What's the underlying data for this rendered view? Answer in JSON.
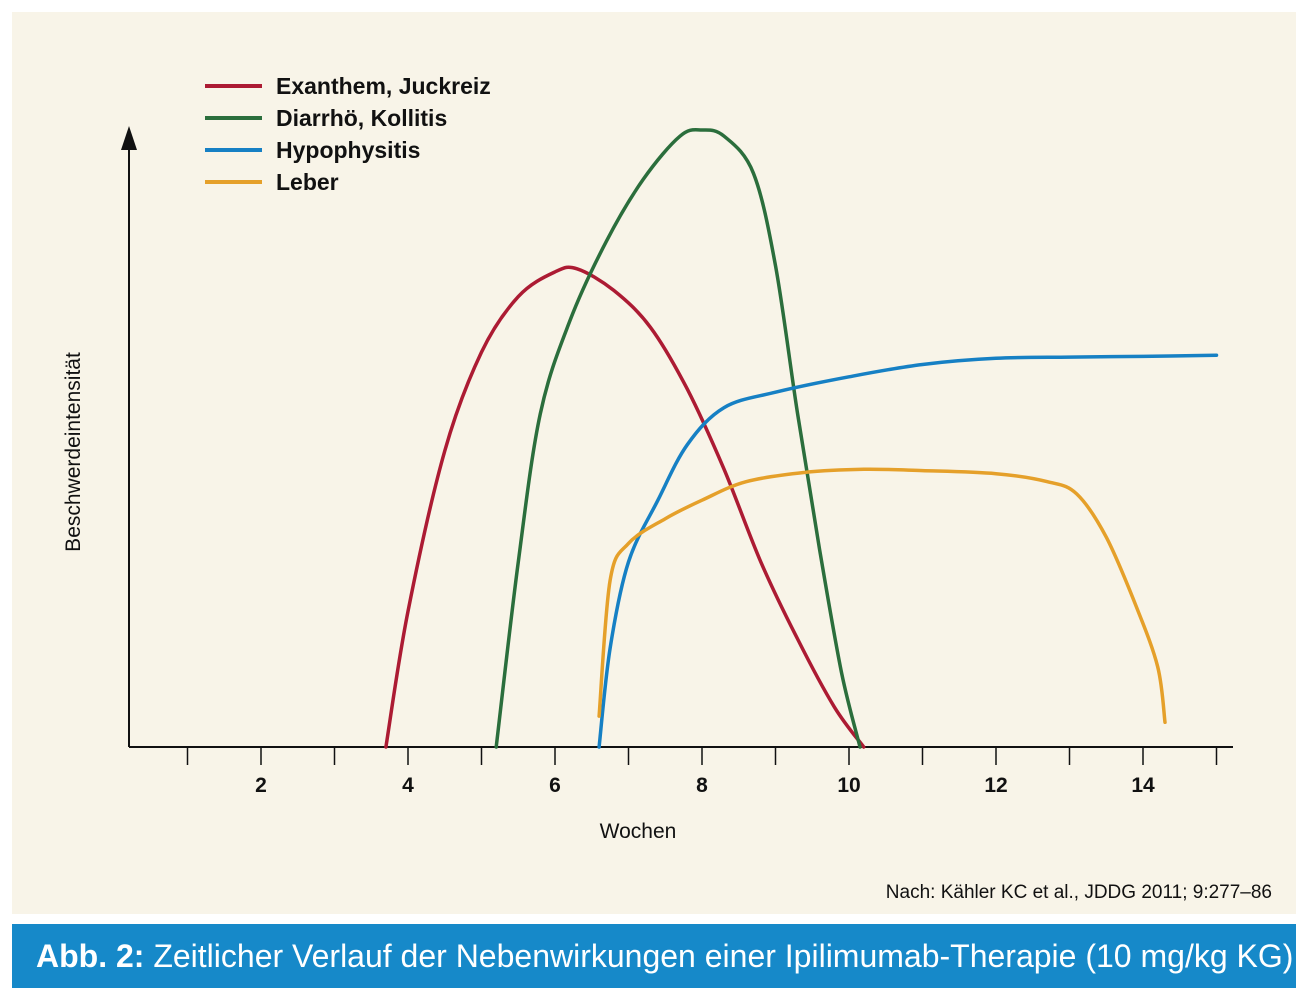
{
  "colors": {
    "panel_background": "#f8f4e8",
    "caption_bar": "#1689c9",
    "axis": "#111111"
  },
  "caption": {
    "label": "Abb. 2:",
    "text": "Zeitlicher Verlauf der Nebenwirkungen einer Ipilimumab-Therapie (10 mg/kg KG)"
  },
  "source": "Nach: Kähler KC et al., JDDG 2011; 9:277–86",
  "chart_data": {
    "type": "line",
    "title": "",
    "xlabel": "Wochen",
    "ylabel": "Beschwerdeintensität",
    "xlim": [
      0.2,
      15.2
    ],
    "ylim": [
      0,
      10
    ],
    "x_ticks": [
      1,
      2,
      3,
      4,
      5,
      6,
      7,
      8,
      9,
      10,
      11,
      12,
      13,
      14,
      15
    ],
    "x_tick_labels": [
      {
        "x": 2,
        "label": "2"
      },
      {
        "x": 4,
        "label": "4"
      },
      {
        "x": 6,
        "label": "6"
      },
      {
        "x": 8,
        "label": "8"
      },
      {
        "x": 10,
        "label": "10"
      },
      {
        "x": 12,
        "label": "12"
      },
      {
        "x": 14,
        "label": "14"
      }
    ],
    "y_axis_arrow": true,
    "grid": false,
    "legend_position": "top-left",
    "series": [
      {
        "name": "Exanthem, Juckreiz",
        "color": "#ac1b33",
        "points": [
          [
            3.7,
            0.0
          ],
          [
            4.0,
            2.2
          ],
          [
            4.5,
            4.8
          ],
          [
            5.0,
            6.4
          ],
          [
            5.5,
            7.3
          ],
          [
            6.0,
            7.7
          ],
          [
            6.3,
            7.75
          ],
          [
            6.8,
            7.4
          ],
          [
            7.3,
            6.8
          ],
          [
            7.8,
            5.8
          ],
          [
            8.3,
            4.5
          ],
          [
            8.8,
            3.0
          ],
          [
            9.3,
            1.75
          ],
          [
            9.8,
            0.65
          ],
          [
            10.2,
            0.0
          ]
        ]
      },
      {
        "name": "Diarrhö, Kollitis",
        "color": "#2b6e3c",
        "points": [
          [
            5.2,
            0.0
          ],
          [
            5.5,
            3.0
          ],
          [
            5.8,
            5.4
          ],
          [
            6.2,
            6.9
          ],
          [
            6.7,
            8.2
          ],
          [
            7.2,
            9.2
          ],
          [
            7.7,
            9.9
          ],
          [
            8.0,
            10.0
          ],
          [
            8.3,
            9.9
          ],
          [
            8.7,
            9.3
          ],
          [
            9.0,
            7.8
          ],
          [
            9.3,
            5.4
          ],
          [
            9.6,
            3.2
          ],
          [
            9.9,
            1.2
          ],
          [
            10.15,
            0.0
          ]
        ]
      },
      {
        "name": "Hypophysitis",
        "color": "#1680c4",
        "points": [
          [
            6.6,
            0.0
          ],
          [
            6.75,
            1.6
          ],
          [
            7.0,
            3.0
          ],
          [
            7.4,
            4.0
          ],
          [
            7.8,
            4.9
          ],
          [
            8.3,
            5.5
          ],
          [
            9.0,
            5.75
          ],
          [
            10.0,
            6.0
          ],
          [
            11.0,
            6.2
          ],
          [
            12.0,
            6.3
          ],
          [
            13.0,
            6.32
          ],
          [
            14.0,
            6.33
          ],
          [
            15.0,
            6.35
          ]
        ]
      },
      {
        "name": "Leber",
        "color": "#e5a02a",
        "points": [
          [
            6.6,
            0.5
          ],
          [
            6.75,
            2.7
          ],
          [
            7.0,
            3.3
          ],
          [
            7.5,
            3.7
          ],
          [
            8.0,
            4.0
          ],
          [
            8.6,
            4.3
          ],
          [
            9.4,
            4.45
          ],
          [
            10.2,
            4.5
          ],
          [
            11.0,
            4.48
          ],
          [
            12.0,
            4.43
          ],
          [
            12.7,
            4.3
          ],
          [
            13.1,
            4.1
          ],
          [
            13.5,
            3.4
          ],
          [
            13.9,
            2.3
          ],
          [
            14.2,
            1.3
          ],
          [
            14.3,
            0.4
          ]
        ]
      }
    ]
  }
}
